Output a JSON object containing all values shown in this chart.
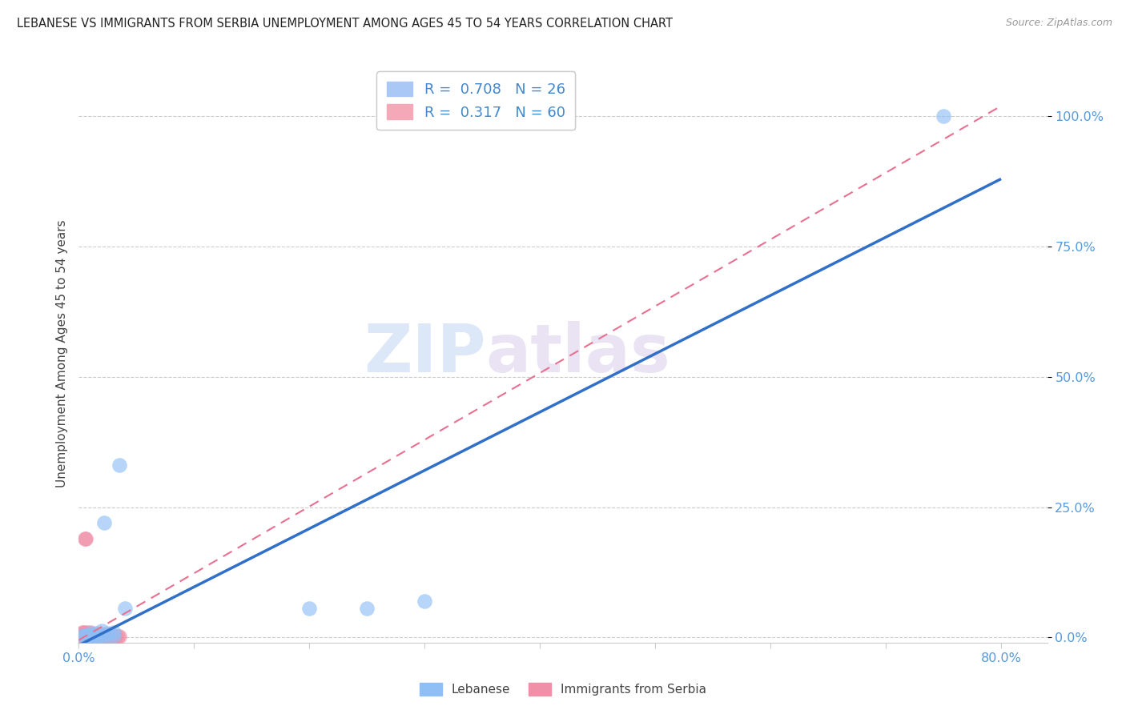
{
  "title": "LEBANESE VS IMMIGRANTS FROM SERBIA UNEMPLOYMENT AMONG AGES 45 TO 54 YEARS CORRELATION CHART",
  "source": "Source: ZipAtlas.com",
  "ylabel": "Unemployment Among Ages 45 to 54 years",
  "xlim": [
    0.0,
    0.84
  ],
  "ylim": [
    -0.01,
    1.1
  ],
  "yticks": [
    0.0,
    0.25,
    0.5,
    0.75,
    1.0
  ],
  "ytick_labels": [
    "0.0%",
    "25.0%",
    "50.0%",
    "75.0%",
    "100.0%"
  ],
  "xticks": [
    0.0,
    0.1,
    0.2,
    0.3,
    0.4,
    0.5,
    0.6,
    0.7,
    0.8
  ],
  "xtick_labels": [
    "0.0%",
    "",
    "",
    "",
    "",
    "",
    "",
    "",
    "80.0%"
  ],
  "watermark_zip": "ZIP",
  "watermark_atlas": "atlas",
  "legend_entry1_label": "R =  0.708   N = 26",
  "legend_entry2_label": "R =  0.317   N = 60",
  "legend_entry1_color": "#aac8f5",
  "legend_entry2_color": "#f5a8b8",
  "lebanese_color": "#90bff5",
  "serbia_color": "#f090a8",
  "line_blue_color": "#3070c8",
  "line_pink_color": "#e87090",
  "blue_line_x0": 0.0,
  "blue_line_y0": -0.015,
  "blue_line_x1": 0.8,
  "blue_line_y1": 0.88,
  "pink_line_x0": 0.0,
  "pink_line_y0": -0.005,
  "pink_line_x1": 0.8,
  "pink_line_y1": 1.02,
  "lebanese_x": [
    0.003,
    0.005,
    0.007,
    0.008,
    0.009,
    0.01,
    0.01,
    0.012,
    0.013,
    0.015,
    0.015,
    0.017,
    0.018,
    0.02,
    0.02,
    0.022,
    0.025,
    0.025,
    0.03,
    0.03,
    0.035,
    0.04,
    0.2,
    0.25,
    0.3,
    0.75
  ],
  "lebanese_y": [
    0.003,
    0.003,
    0.003,
    0.003,
    0.003,
    0.003,
    0.008,
    0.003,
    0.003,
    0.003,
    0.008,
    0.003,
    0.003,
    0.003,
    0.012,
    0.22,
    0.003,
    0.008,
    0.003,
    0.01,
    0.33,
    0.055,
    0.055,
    0.055,
    0.07,
    1.0
  ],
  "serbia_x": [
    0.001,
    0.002,
    0.002,
    0.003,
    0.003,
    0.003,
    0.004,
    0.004,
    0.004,
    0.005,
    0.005,
    0.005,
    0.006,
    0.006,
    0.006,
    0.007,
    0.007,
    0.007,
    0.008,
    0.008,
    0.009,
    0.009,
    0.01,
    0.01,
    0.01,
    0.011,
    0.012,
    0.012,
    0.013,
    0.013,
    0.014,
    0.015,
    0.015,
    0.016,
    0.016,
    0.017,
    0.017,
    0.018,
    0.018,
    0.019,
    0.019,
    0.02,
    0.02,
    0.021,
    0.022,
    0.022,
    0.023,
    0.024,
    0.025,
    0.025,
    0.026,
    0.027,
    0.028,
    0.028,
    0.029,
    0.03,
    0.031,
    0.032,
    0.034,
    0.035
  ],
  "serbia_y": [
    0.002,
    0.002,
    0.005,
    0.002,
    0.005,
    0.009,
    0.002,
    0.005,
    0.009,
    0.002,
    0.005,
    0.19,
    0.002,
    0.005,
    0.19,
    0.002,
    0.005,
    0.009,
    0.002,
    0.005,
    0.002,
    0.005,
    0.002,
    0.005,
    0.009,
    0.002,
    0.002,
    0.005,
    0.002,
    0.005,
    0.002,
    0.002,
    0.005,
    0.002,
    0.005,
    0.002,
    0.005,
    0.002,
    0.005,
    0.002,
    0.005,
    0.002,
    0.005,
    0.002,
    0.002,
    0.005,
    0.002,
    0.002,
    0.002,
    0.005,
    0.002,
    0.002,
    0.002,
    0.005,
    0.002,
    0.002,
    0.002,
    0.002,
    0.002,
    0.002
  ]
}
